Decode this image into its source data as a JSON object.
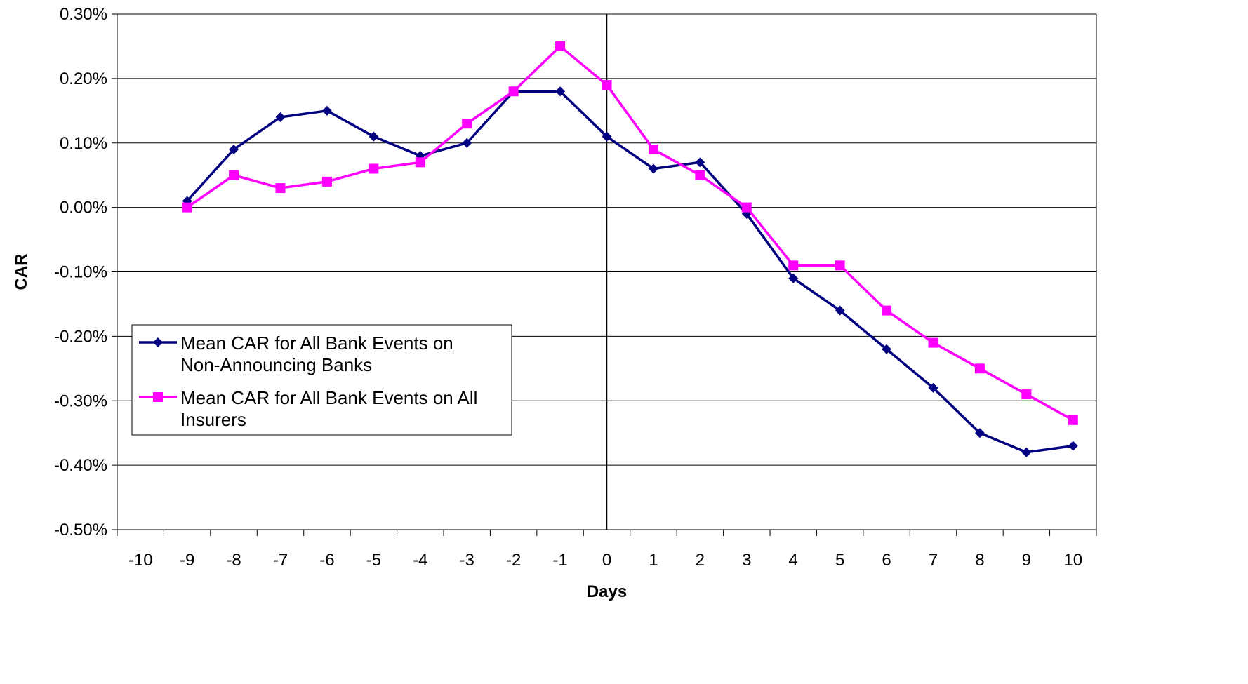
{
  "chart_data": {
    "type": "line",
    "title": "",
    "xlabel": "Days",
    "ylabel": "CAR",
    "x_ticks": [
      -10,
      -9,
      -8,
      -7,
      -6,
      -5,
      -4,
      -3,
      -2,
      -1,
      0,
      1,
      2,
      3,
      4,
      5,
      6,
      7,
      8,
      9,
      10
    ],
    "y_ticks": [
      "0.30%",
      "0.20%",
      "0.10%",
      "0.00%",
      "-0.10%",
      "-0.20%",
      "-0.30%",
      "-0.40%",
      "-0.50%"
    ],
    "ylim": [
      -0.5,
      0.3
    ],
    "y_unit": "%",
    "grid": true,
    "legend_position": "lower-left",
    "x": [
      -9,
      -8,
      -7,
      -6,
      -5,
      -4,
      -3,
      -2,
      -1,
      0,
      1,
      2,
      3,
      4,
      5,
      6,
      7,
      8,
      9,
      10
    ],
    "series": [
      {
        "name": "Mean CAR for All Bank Events on Non-Announcing Banks",
        "legend_lines": [
          "Mean CAR for All Bank Events on",
          "Non-Announcing Banks"
        ],
        "color": "#000080",
        "marker": "diamond",
        "values": [
          0.01,
          0.09,
          0.14,
          0.15,
          0.11,
          0.08,
          0.1,
          0.18,
          0.18,
          0.11,
          0.06,
          0.07,
          -0.01,
          -0.11,
          -0.16,
          -0.22,
          -0.28,
          -0.35,
          -0.38,
          -0.37
        ]
      },
      {
        "name": "Mean CAR for All Bank Events on All Insurers",
        "legend_lines": [
          "Mean CAR for All Bank Events on All",
          "Insurers"
        ],
        "color": "#FF00FF",
        "marker": "square",
        "values": [
          0.0,
          0.05,
          0.03,
          0.04,
          0.06,
          0.07,
          0.13,
          0.18,
          0.25,
          0.19,
          0.09,
          0.05,
          0.0,
          -0.09,
          -0.09,
          -0.16,
          -0.21,
          -0.25,
          -0.29,
          -0.33
        ]
      }
    ]
  }
}
